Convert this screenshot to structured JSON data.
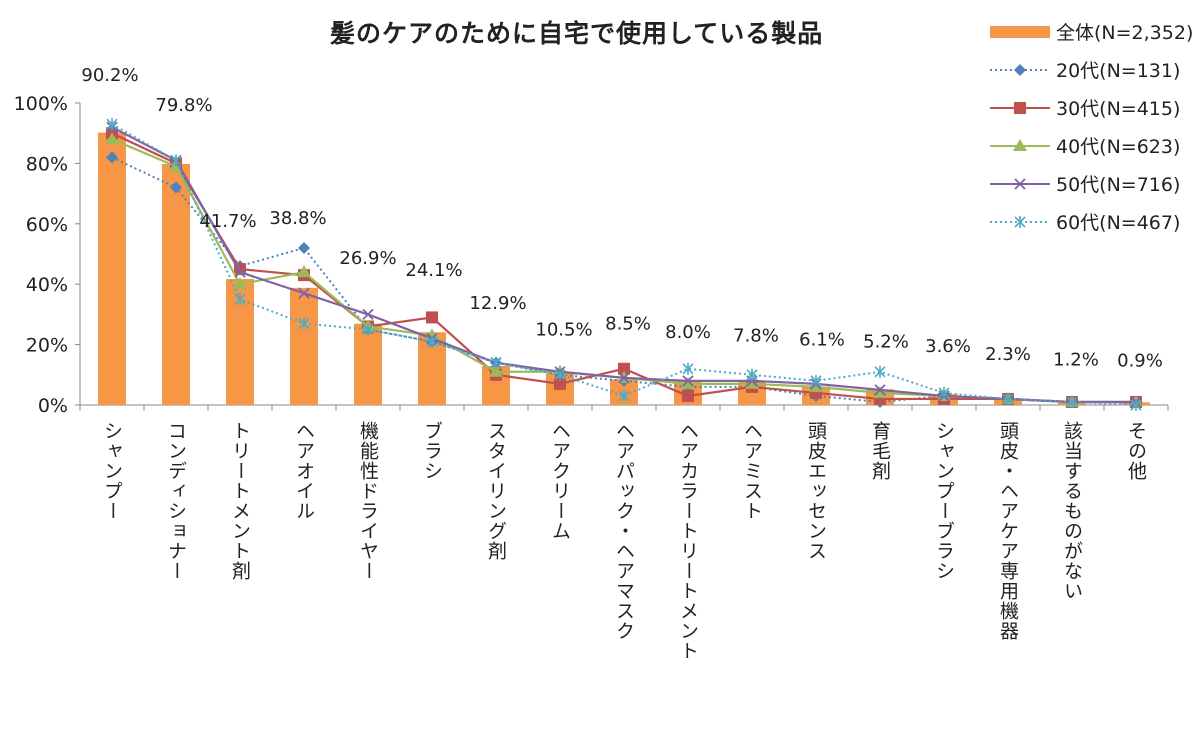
{
  "chart_data": {
    "type": "bar",
    "title": "髪のケアのために自宅で使用している製品",
    "xlabel": "",
    "ylabel": "",
    "ylim": [
      0,
      100
    ],
    "yticks": [
      "0%",
      "20%",
      "40%",
      "60%",
      "80%",
      "100%"
    ],
    "grid": false,
    "legend_position": "top-right",
    "categories": [
      "シャンプー",
      "コンディショナー",
      "トリートメント剤",
      "ヘアオイル",
      "機能性ドライヤー",
      "ブラシ",
      "スタイリング剤",
      "ヘアクリーム",
      "ヘアパック・ヘアマスク",
      "ヘアカラートリートメント",
      "ヘアミスト",
      "頭皮エッセンス",
      "育毛剤",
      "シャンプーブラシ",
      "頭皮・ヘアケア専用機器",
      "該当するものがない",
      "その他"
    ],
    "bar_labels": [
      "90.2%",
      "79.8%",
      "41.7%",
      "38.8%",
      "26.9%",
      "24.1%",
      "12.9%",
      "10.5%",
      "8.5%",
      "8.0%",
      "7.8%",
      "6.1%",
      "5.2%",
      "3.6%",
      "2.3%",
      "1.2%",
      "0.9%"
    ],
    "series": [
      {
        "name": "全体(N=2,352)",
        "kind": "bar",
        "color": "#F79646",
        "marker": "bar",
        "values": [
          90.2,
          79.8,
          41.7,
          38.8,
          26.9,
          24.1,
          12.9,
          10.5,
          8.5,
          8.0,
          7.8,
          6.1,
          5.2,
          3.6,
          2.3,
          1.2,
          0.9
        ]
      },
      {
        "name": "20代(N=131)",
        "kind": "line",
        "color": "#4F81BD",
        "marker": "diamond",
        "dash": "dotted",
        "values": [
          82,
          72,
          46,
          52,
          25,
          21,
          14,
          10,
          8,
          6,
          6,
          3,
          1,
          3,
          2,
          1,
          1
        ]
      },
      {
        "name": "30代(N=415)",
        "kind": "line",
        "color": "#C0504D",
        "marker": "square",
        "dash": "solid",
        "values": [
          90,
          80,
          45,
          43,
          26,
          29,
          10,
          7,
          12,
          3,
          6,
          4,
          2,
          2,
          2,
          1,
          1
        ]
      },
      {
        "name": "40代(N=623)",
        "kind": "line",
        "color": "#9BBB59",
        "marker": "triangle",
        "dash": "solid",
        "values": [
          88,
          79,
          40,
          44,
          26,
          23,
          11,
          11,
          9,
          7,
          7,
          6,
          4,
          3,
          2,
          1,
          1
        ]
      },
      {
        "name": "50代(N=716)",
        "kind": "line",
        "color": "#8064A2",
        "marker": "x",
        "dash": "solid",
        "values": [
          92,
          81,
          44,
          37,
          30,
          22,
          14,
          11,
          9,
          8,
          8,
          7,
          5,
          3,
          2,
          1,
          1
        ]
      },
      {
        "name": "60代(N=467)",
        "kind": "line",
        "color": "#4BACC6",
        "marker": "star",
        "dash": "dotted",
        "values": [
          93,
          81,
          35,
          27,
          25,
          21,
          14,
          10,
          3,
          12,
          10,
          8,
          11,
          4,
          2,
          1,
          0
        ]
      }
    ]
  }
}
